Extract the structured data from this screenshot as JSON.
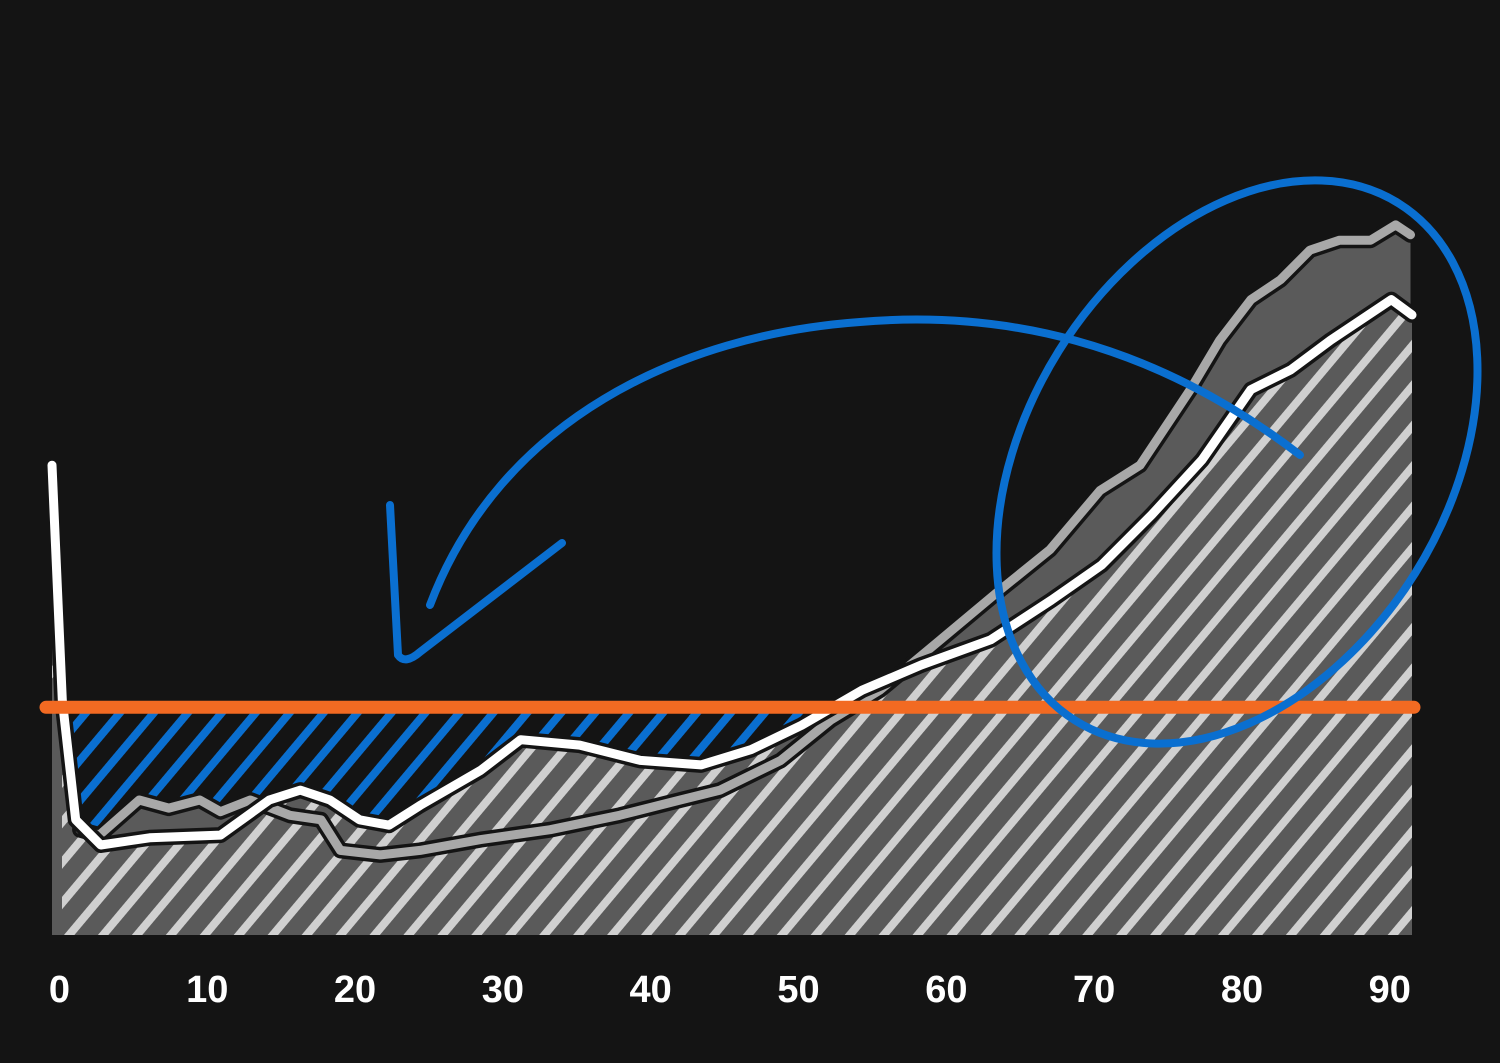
{
  "chart_data": {
    "type": "line",
    "xlim": [
      -0.5,
      91.5
    ],
    "ylim": [
      0,
      100
    ],
    "xticks": [
      0,
      10,
      20,
      30,
      40,
      50,
      60,
      70,
      80,
      90
    ],
    "hline": {
      "value": 25.3,
      "color": "#f26a22"
    },
    "series": [
      {
        "color": "#a8a8a8",
        "x": [
          1.4,
          2.7,
          5.4,
          7.4,
          9.5,
          10.9,
          12.9,
          15.6,
          17.7,
          19,
          21.7,
          24.4,
          28.5,
          33.2,
          37.9,
          42,
          44.7,
          48.8,
          52.2,
          55.5,
          59.6,
          63.6,
          67,
          70.4,
          73.1,
          76.5,
          78.5,
          80.6,
          82.6,
          84.6,
          86.6,
          88.7,
          90.4,
          91.4
        ],
        "values": [
          11.7,
          11.1,
          15,
          14.1,
          15,
          13.7,
          15,
          13.3,
          12.8,
          9.4,
          8.9,
          9.4,
          10.6,
          11.7,
          13.3,
          15,
          16.1,
          19.4,
          23.9,
          27.2,
          32.8,
          38.3,
          42.8,
          49.4,
          52.2,
          60.6,
          66.1,
          70.6,
          72.8,
          76.1,
          77.2,
          77.2,
          78.9,
          77.8
        ]
      },
      {
        "color": "#ffffff",
        "x": [
          -0.5,
          0.2,
          1.1,
          2.8,
          6.1,
          10.9,
          14.2,
          16.3,
          18.3,
          20.3,
          22.3,
          24.4,
          28.5,
          31.2,
          35.2,
          39.3,
          43.4,
          46.8,
          50.2,
          54.3,
          58.3,
          63,
          67.1,
          70.5,
          73.9,
          77.3,
          80.6,
          83.3,
          86,
          90.1,
          91.5
        ],
        "values": [
          52.2,
          26.1,
          12.8,
          10,
          10.8,
          11.1,
          15,
          16.1,
          15,
          12.8,
          12.2,
          14.4,
          18.3,
          21.7,
          21.1,
          19.4,
          18.9,
          20.6,
          23.3,
          27.2,
          30,
          32.8,
          37.2,
          41.1,
          46.7,
          52.8,
          60.6,
          62.8,
          66.1,
          70.6,
          68.9
        ]
      }
    ]
  }
}
